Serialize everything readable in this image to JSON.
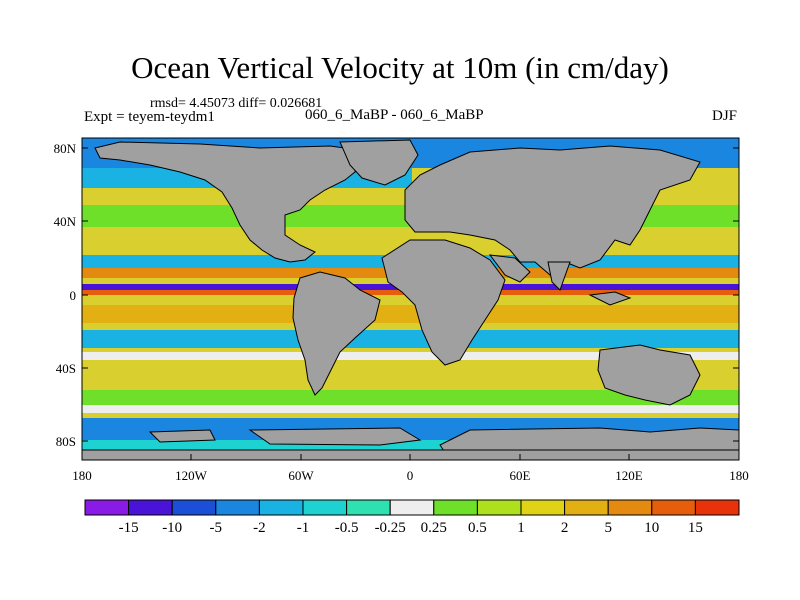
{
  "title": "Ocean Vertical Velocity at 10m (in cm/day)",
  "stats": "rmsd= 4.45073 diff= 0.026681",
  "expt": "Expt = teyem-teydm1",
  "experiment_names": "060_6_MaBP - 060_6_MaBP",
  "season": "DJF",
  "lat_labels": [
    "80N",
    "40N",
    "0",
    "40S",
    "80S"
  ],
  "lon_labels": [
    "180",
    "120W",
    "60W",
    "0",
    "60E",
    "120E",
    "180"
  ],
  "colorbar": {
    "labels": [
      "-15",
      "-10",
      "-5",
      "-2",
      "-1",
      "-0.5",
      "-0.25",
      "0.25",
      "0.5",
      "1",
      "2",
      "5",
      "10",
      "15"
    ],
    "colors": [
      "#8a1ae6",
      "#4a14d8",
      "#1c4fd8",
      "#1a86e0",
      "#19b2e3",
      "#1fd2d2",
      "#2fe0b0",
      "#eeeeee",
      "#6fe02a",
      "#aee01e",
      "#e0d216",
      "#e2b012",
      "#e48a10",
      "#e65e0c",
      "#e8320a"
    ]
  },
  "colors": {
    "land": "#a0a0a0",
    "ocean_positive_dominant": "#d9cf2e",
    "ocean_negative_band": "#1a86e0"
  }
}
